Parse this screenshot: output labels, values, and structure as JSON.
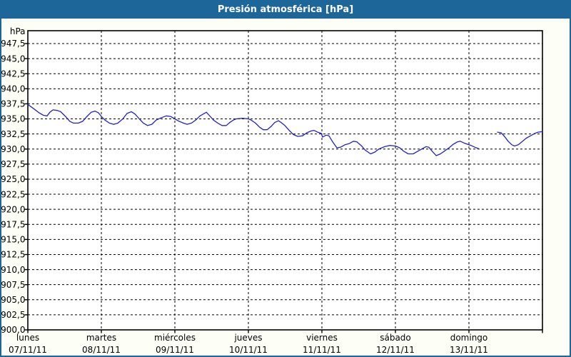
{
  "window": {
    "title": "Presión atmosférica [hPa]"
  },
  "colors": {
    "titlebar": "#1c6699",
    "window_border": "#1c6699",
    "window_background": "#fdfff7",
    "plot_background": "#ffffff",
    "grid": "#000000",
    "axis_text": "#000000",
    "line": "#2222cc"
  },
  "chart_data": {
    "type": "line",
    "title": "Presión atmosférica [hPa]",
    "ylabel": "hPa",
    "unit_label": "hPa",
    "ylim": [
      900.0,
      947.5
    ],
    "ytick_step": 2.5,
    "grid": "dashed",
    "legend_position": "none",
    "yticks": [
      {
        "value": 947.5,
        "label": "947,5"
      },
      {
        "value": 945.0,
        "label": "945,0"
      },
      {
        "value": 942.5,
        "label": "942,5"
      },
      {
        "value": 940.0,
        "label": "940,0"
      },
      {
        "value": 937.5,
        "label": "937,5"
      },
      {
        "value": 935.0,
        "label": "935,0"
      },
      {
        "value": 932.5,
        "label": "932,5"
      },
      {
        "value": 930.0,
        "label": "930,0"
      },
      {
        "value": 927.5,
        "label": "927,5"
      },
      {
        "value": 925.0,
        "label": "925,0"
      },
      {
        "value": 922.5,
        "label": "922,5"
      },
      {
        "value": 920.0,
        "label": "920,0"
      },
      {
        "value": 917.5,
        "label": "917,5"
      },
      {
        "value": 915.0,
        "label": "915,0"
      },
      {
        "value": 912.5,
        "label": "912,5"
      },
      {
        "value": 910.0,
        "label": "910,0"
      },
      {
        "value": 907.5,
        "label": "907,5"
      },
      {
        "value": 905.0,
        "label": "905,0"
      },
      {
        "value": 902.5,
        "label": "902,5"
      },
      {
        "value": 900.0,
        "label": "900,0"
      }
    ],
    "x_days": [
      {
        "name": "lunes",
        "date": "07/11/11"
      },
      {
        "name": "martes",
        "date": "08/11/11"
      },
      {
        "name": "miércoles",
        "date": "09/11/11"
      },
      {
        "name": "jueves",
        "date": "10/11/11"
      },
      {
        "name": "viernes",
        "date": "11/11/11"
      },
      {
        "name": "sábado",
        "date": "12/11/11"
      },
      {
        "name": "domingo",
        "date": "13/11/11"
      }
    ],
    "hours_total": 168,
    "series": [
      {
        "name": "Presión atmosférica",
        "unit": "hPa",
        "color": "#2222cc",
        "segments": [
          [
            [
              0,
              937.4
            ],
            [
              1.9,
              936.7
            ],
            [
              3.7,
              936.0
            ],
            [
              5.1,
              935.6
            ],
            [
              6.3,
              935.5
            ],
            [
              7.2,
              936.1
            ],
            [
              8.2,
              936.5
            ],
            [
              9.6,
              936.4
            ],
            [
              10.7,
              936.2
            ],
            [
              12.3,
              935.4
            ],
            [
              13.7,
              934.6
            ],
            [
              14.9,
              934.3
            ],
            [
              16.5,
              934.3
            ],
            [
              17.9,
              934.6
            ],
            [
              19.3,
              935.4
            ],
            [
              20.7,
              936.1
            ],
            [
              21.9,
              936.3
            ],
            [
              23.1,
              936.0
            ],
            [
              24,
              935.4
            ],
            [
              25.2,
              934.8
            ],
            [
              26.6,
              934.3
            ],
            [
              28,
              934.1
            ],
            [
              29.4,
              934.3
            ],
            [
              31,
              935.0
            ],
            [
              32.4,
              935.9
            ],
            [
              33.8,
              936.2
            ],
            [
              35,
              935.8
            ],
            [
              36.4,
              935.0
            ],
            [
              37.7,
              934.3
            ],
            [
              39.1,
              933.9
            ],
            [
              40.5,
              934.1
            ],
            [
              41.9,
              934.8
            ],
            [
              43.6,
              935.2
            ],
            [
              45.2,
              935.5
            ],
            [
              46.6,
              935.4
            ],
            [
              48,
              935.0
            ],
            [
              49.4,
              934.6
            ],
            [
              50.8,
              934.3
            ],
            [
              52,
              934.1
            ],
            [
              53.4,
              934.3
            ],
            [
              54.8,
              934.8
            ],
            [
              56.2,
              935.5
            ],
            [
              57.6,
              935.9
            ],
            [
              58.3,
              936.1
            ],
            [
              59.2,
              935.6
            ],
            [
              60.6,
              934.8
            ],
            [
              62,
              934.3
            ],
            [
              63.4,
              933.9
            ],
            [
              64.8,
              933.9
            ],
            [
              65.9,
              934.4
            ],
            [
              67.1,
              934.8
            ],
            [
              68,
              935.0
            ],
            [
              70.1,
              935.1
            ],
            [
              72,
              935.0
            ],
            [
              72.9,
              934.8
            ],
            [
              74.3,
              934.3
            ],
            [
              75.7,
              933.6
            ],
            [
              76.9,
              933.2
            ],
            [
              78.1,
              933.2
            ],
            [
              79.5,
              933.8
            ],
            [
              80.6,
              934.4
            ],
            [
              81.8,
              934.7
            ],
            [
              82.7,
              934.4
            ],
            [
              83.9,
              933.9
            ],
            [
              85.3,
              933.1
            ],
            [
              86.7,
              932.4
            ],
            [
              88.1,
              932.1
            ],
            [
              89.7,
              932.2
            ],
            [
              91.1,
              932.7
            ],
            [
              92.5,
              933.0
            ],
            [
              93.4,
              933.1
            ],
            [
              94.6,
              932.8
            ],
            [
              95.8,
              932.6
            ],
            [
              96.2,
              932.0
            ],
            [
              97.4,
              932.3
            ],
            [
              98.3,
              932.2
            ],
            [
              99.5,
              931.2
            ],
            [
              100.9,
              930.2
            ],
            [
              102.1,
              930.3
            ],
            [
              103.5,
              930.7
            ],
            [
              104.9,
              930.9
            ],
            [
              106.3,
              931.3
            ],
            [
              107.4,
              931.2
            ],
            [
              108.8,
              930.6
            ],
            [
              110.2,
              929.8
            ],
            [
              111.9,
              929.2
            ],
            [
              113.3,
              929.5
            ],
            [
              114.6,
              930.0
            ],
            [
              116.5,
              930.4
            ],
            [
              118.1,
              930.6
            ],
            [
              120,
              930.5
            ],
            [
              121.4,
              930.2
            ],
            [
              122.8,
              929.6
            ],
            [
              124.2,
              929.2
            ],
            [
              125.8,
              929.2
            ],
            [
              127.2,
              929.6
            ],
            [
              128.6,
              930.0
            ],
            [
              130,
              930.4
            ],
            [
              130.9,
              930.3
            ],
            [
              131.9,
              929.7
            ],
            [
              133.3,
              928.9
            ],
            [
              134.7,
              929.2
            ],
            [
              136.1,
              929.7
            ],
            [
              137.5,
              930.2
            ],
            [
              138.9,
              930.8
            ],
            [
              140.3,
              931.2
            ],
            [
              141.2,
              931.3
            ],
            [
              142.4,
              931.0
            ],
            [
              143.5,
              930.8
            ],
            [
              144.7,
              930.6
            ],
            [
              145.9,
              930.3
            ],
            [
              147,
              930.1
            ]
          ],
          [
            [
              153.3,
              932.8
            ],
            [
              154.5,
              932.7
            ],
            [
              155.6,
              932.1
            ],
            [
              156.8,
              931.3
            ],
            [
              158,
              930.7
            ],
            [
              158.9,
              930.5
            ],
            [
              160.1,
              930.7
            ],
            [
              161.3,
              931.2
            ],
            [
              162.7,
              931.8
            ],
            [
              164.1,
              932.2
            ],
            [
              165.5,
              932.6
            ],
            [
              166.6,
              932.8
            ],
            [
              168,
              932.9
            ]
          ]
        ]
      }
    ]
  }
}
